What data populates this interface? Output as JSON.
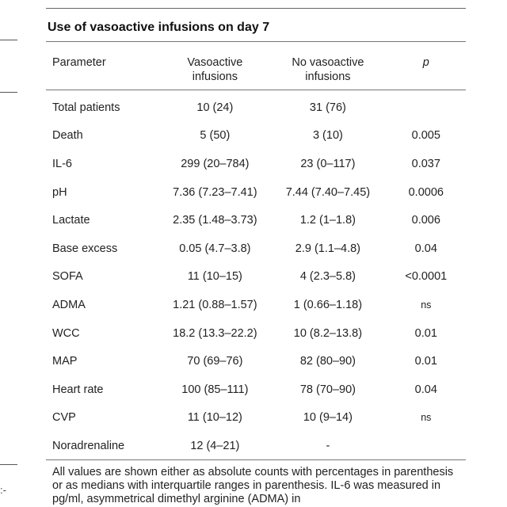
{
  "table": {
    "title": "Use of vasoactive infusions on day 7",
    "headers": {
      "parameter": "Parameter",
      "vasoactive_line1": "Vasoactive",
      "vasoactive_line2": "infusions",
      "no_vasoactive_line1": "No vasoactive",
      "no_vasoactive_line2": "infusions",
      "p": "p"
    },
    "rows": [
      {
        "parameter": "Total patients",
        "vasoactive": "10 (24)",
        "no_vasoactive": "31 (76)",
        "p": ""
      },
      {
        "parameter": "Death",
        "vasoactive": "5 (50)",
        "no_vasoactive": "3 (10)",
        "p": "0.005"
      },
      {
        "parameter": "IL-6",
        "vasoactive": "299 (20–784)",
        "no_vasoactive": "23 (0–117)",
        "p": "0.037"
      },
      {
        "parameter": "pH",
        "vasoactive": "7.36 (7.23–7.41)",
        "no_vasoactive": "7.44 (7.40–7.45)",
        "p": "0.0006"
      },
      {
        "parameter": "Lactate",
        "vasoactive": "2.35 (1.48–3.73)",
        "no_vasoactive": "1.2 (1–1.8)",
        "p": "0.006"
      },
      {
        "parameter": "Base excess",
        "vasoactive": "0.05 (4.7–3.8)",
        "no_vasoactive": "2.9 (1.1–4.8)",
        "p": "0.04"
      },
      {
        "parameter": "SOFA",
        "vasoactive": "11 (10–15)",
        "no_vasoactive": "4 (2.3–5.8)",
        "p": "<0.0001"
      },
      {
        "parameter": "ADMA",
        "vasoactive": "1.21 (0.88–1.57)",
        "no_vasoactive": "1 (0.66–1.18)",
        "p": "ns"
      },
      {
        "parameter": "WCC",
        "vasoactive": "18.2 (13.3–22.2)",
        "no_vasoactive": "10 (8.2–13.8)",
        "p": "0.01"
      },
      {
        "parameter": "MAP",
        "vasoactive": "70 (69–76)",
        "no_vasoactive": "82 (80–90)",
        "p": "0.01"
      },
      {
        "parameter": "Heart rate",
        "vasoactive": "100 (85–111)",
        "no_vasoactive": "78 (70–90)",
        "p": "0.04"
      },
      {
        "parameter": "CVP",
        "vasoactive": "11 (10–12)",
        "no_vasoactive": "10 (9–14)",
        "p": "ns"
      },
      {
        "parameter": "Noradrenaline",
        "vasoactive": "12 (4–21)",
        "no_vasoactive": "-",
        "p": ""
      }
    ],
    "footnote": "All values are shown either as absolute counts with percentages in parenthesis or as medians with interquartile ranges in parenthesis. IL-6 was measured in pg/ml, asymmetrical dimethyl arginine (ADMA) in"
  },
  "stub_mark": ":-"
}
